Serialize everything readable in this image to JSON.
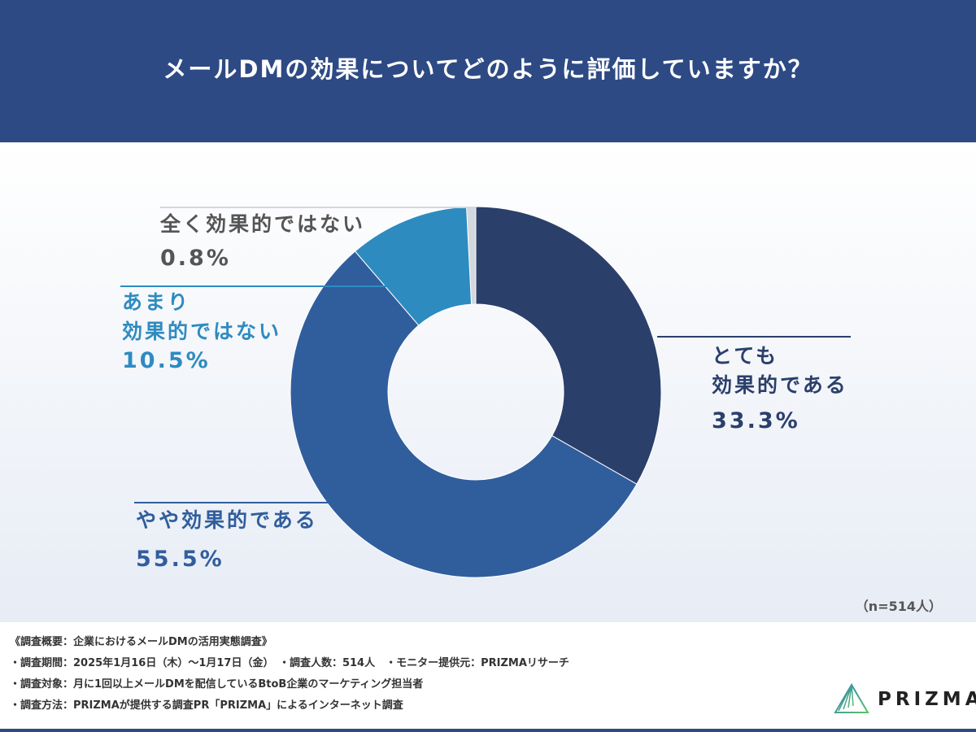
{
  "header": {
    "title": "メールDMの効果についてどのように評価していますか？"
  },
  "chart_data": {
    "type": "pie",
    "donut": true,
    "title": "メールDMの効果についてどのように評価していますか？",
    "start": "top, clockwise",
    "slices": [
      {
        "label_lines": [
          "とても",
          "効果的である"
        ],
        "label": "とても効果的である",
        "value": 33.3,
        "display": "33.3%",
        "color": "#2b3f6b"
      },
      {
        "label_lines": [
          "やや効果的である"
        ],
        "label": "やや効果的である",
        "value": 55.5,
        "display": "55.5%",
        "color": "#305e9d"
      },
      {
        "label_lines": [
          "あまり",
          "効果的ではない"
        ],
        "label": "あまり効果的ではない",
        "value": 10.5,
        "display": "10.5%",
        "color": "#2e8bc0"
      },
      {
        "label_lines": [
          "全く効果的ではない"
        ],
        "label": "全く効果的ではない",
        "value": 0.8,
        "display": "0.8%",
        "color": "#d3d7de"
      }
    ],
    "sample": "（n=514人）"
  },
  "notes": [
    "《調査概要：企業におけるメールDMの活用実態調査》",
    "・調査期間：2025年1月16日（木）～1月17日（金）　・調査人数：514人　・モニター提供元：PRIZMAリサーチ",
    "・調査対象：月に1回以上メールDMを配信しているBtoB企業のマーケティング担当者",
    "・調査方法：PRIZMAが提供する調査PR「PRIZMA」によるインターネット調査"
  ],
  "logo": {
    "text": "PRIZMA"
  }
}
